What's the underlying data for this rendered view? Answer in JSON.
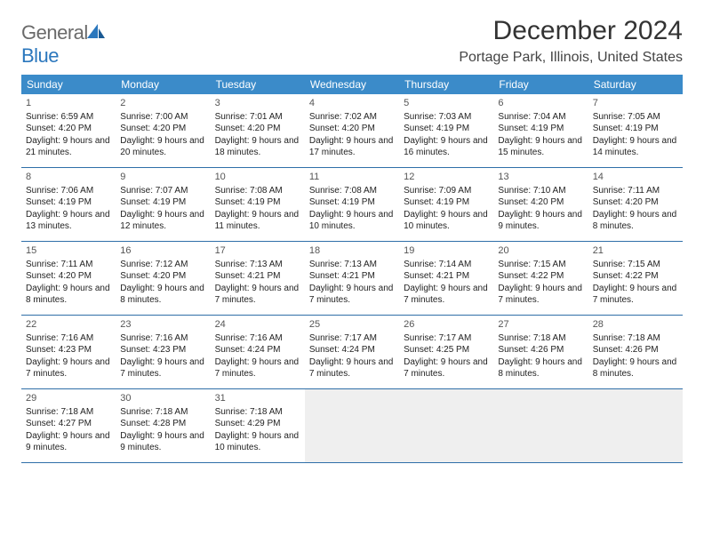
{
  "logo": {
    "text1": "General",
    "text2": "Blue"
  },
  "header": {
    "month_title": "December 2024",
    "location": "Portage Park, Illinois, United States"
  },
  "colors": {
    "header_bg": "#3b8bc9",
    "header_text": "#ffffff",
    "row_border": "#2f6fa8",
    "empty_bg": "#efefef",
    "logo_gray": "#6a6a6a",
    "logo_blue": "#2b77bd"
  },
  "day_names": [
    "Sunday",
    "Monday",
    "Tuesday",
    "Wednesday",
    "Thursday",
    "Friday",
    "Saturday"
  ],
  "weeks": [
    [
      {
        "day": "1",
        "sunrise": "Sunrise: 6:59 AM",
        "sunset": "Sunset: 4:20 PM",
        "daylight": "Daylight: 9 hours and 21 minutes."
      },
      {
        "day": "2",
        "sunrise": "Sunrise: 7:00 AM",
        "sunset": "Sunset: 4:20 PM",
        "daylight": "Daylight: 9 hours and 20 minutes."
      },
      {
        "day": "3",
        "sunrise": "Sunrise: 7:01 AM",
        "sunset": "Sunset: 4:20 PM",
        "daylight": "Daylight: 9 hours and 18 minutes."
      },
      {
        "day": "4",
        "sunrise": "Sunrise: 7:02 AM",
        "sunset": "Sunset: 4:20 PM",
        "daylight": "Daylight: 9 hours and 17 minutes."
      },
      {
        "day": "5",
        "sunrise": "Sunrise: 7:03 AM",
        "sunset": "Sunset: 4:19 PM",
        "daylight": "Daylight: 9 hours and 16 minutes."
      },
      {
        "day": "6",
        "sunrise": "Sunrise: 7:04 AM",
        "sunset": "Sunset: 4:19 PM",
        "daylight": "Daylight: 9 hours and 15 minutes."
      },
      {
        "day": "7",
        "sunrise": "Sunrise: 7:05 AM",
        "sunset": "Sunset: 4:19 PM",
        "daylight": "Daylight: 9 hours and 14 minutes."
      }
    ],
    [
      {
        "day": "8",
        "sunrise": "Sunrise: 7:06 AM",
        "sunset": "Sunset: 4:19 PM",
        "daylight": "Daylight: 9 hours and 13 minutes."
      },
      {
        "day": "9",
        "sunrise": "Sunrise: 7:07 AM",
        "sunset": "Sunset: 4:19 PM",
        "daylight": "Daylight: 9 hours and 12 minutes."
      },
      {
        "day": "10",
        "sunrise": "Sunrise: 7:08 AM",
        "sunset": "Sunset: 4:19 PM",
        "daylight": "Daylight: 9 hours and 11 minutes."
      },
      {
        "day": "11",
        "sunrise": "Sunrise: 7:08 AM",
        "sunset": "Sunset: 4:19 PM",
        "daylight": "Daylight: 9 hours and 10 minutes."
      },
      {
        "day": "12",
        "sunrise": "Sunrise: 7:09 AM",
        "sunset": "Sunset: 4:19 PM",
        "daylight": "Daylight: 9 hours and 10 minutes."
      },
      {
        "day": "13",
        "sunrise": "Sunrise: 7:10 AM",
        "sunset": "Sunset: 4:20 PM",
        "daylight": "Daylight: 9 hours and 9 minutes."
      },
      {
        "day": "14",
        "sunrise": "Sunrise: 7:11 AM",
        "sunset": "Sunset: 4:20 PM",
        "daylight": "Daylight: 9 hours and 8 minutes."
      }
    ],
    [
      {
        "day": "15",
        "sunrise": "Sunrise: 7:11 AM",
        "sunset": "Sunset: 4:20 PM",
        "daylight": "Daylight: 9 hours and 8 minutes."
      },
      {
        "day": "16",
        "sunrise": "Sunrise: 7:12 AM",
        "sunset": "Sunset: 4:20 PM",
        "daylight": "Daylight: 9 hours and 8 minutes."
      },
      {
        "day": "17",
        "sunrise": "Sunrise: 7:13 AM",
        "sunset": "Sunset: 4:21 PM",
        "daylight": "Daylight: 9 hours and 7 minutes."
      },
      {
        "day": "18",
        "sunrise": "Sunrise: 7:13 AM",
        "sunset": "Sunset: 4:21 PM",
        "daylight": "Daylight: 9 hours and 7 minutes."
      },
      {
        "day": "19",
        "sunrise": "Sunrise: 7:14 AM",
        "sunset": "Sunset: 4:21 PM",
        "daylight": "Daylight: 9 hours and 7 minutes."
      },
      {
        "day": "20",
        "sunrise": "Sunrise: 7:15 AM",
        "sunset": "Sunset: 4:22 PM",
        "daylight": "Daylight: 9 hours and 7 minutes."
      },
      {
        "day": "21",
        "sunrise": "Sunrise: 7:15 AM",
        "sunset": "Sunset: 4:22 PM",
        "daylight": "Daylight: 9 hours and 7 minutes."
      }
    ],
    [
      {
        "day": "22",
        "sunrise": "Sunrise: 7:16 AM",
        "sunset": "Sunset: 4:23 PM",
        "daylight": "Daylight: 9 hours and 7 minutes."
      },
      {
        "day": "23",
        "sunrise": "Sunrise: 7:16 AM",
        "sunset": "Sunset: 4:23 PM",
        "daylight": "Daylight: 9 hours and 7 minutes."
      },
      {
        "day": "24",
        "sunrise": "Sunrise: 7:16 AM",
        "sunset": "Sunset: 4:24 PM",
        "daylight": "Daylight: 9 hours and 7 minutes."
      },
      {
        "day": "25",
        "sunrise": "Sunrise: 7:17 AM",
        "sunset": "Sunset: 4:24 PM",
        "daylight": "Daylight: 9 hours and 7 minutes."
      },
      {
        "day": "26",
        "sunrise": "Sunrise: 7:17 AM",
        "sunset": "Sunset: 4:25 PM",
        "daylight": "Daylight: 9 hours and 7 minutes."
      },
      {
        "day": "27",
        "sunrise": "Sunrise: 7:18 AM",
        "sunset": "Sunset: 4:26 PM",
        "daylight": "Daylight: 9 hours and 8 minutes."
      },
      {
        "day": "28",
        "sunrise": "Sunrise: 7:18 AM",
        "sunset": "Sunset: 4:26 PM",
        "daylight": "Daylight: 9 hours and 8 minutes."
      }
    ],
    [
      {
        "day": "29",
        "sunrise": "Sunrise: 7:18 AM",
        "sunset": "Sunset: 4:27 PM",
        "daylight": "Daylight: 9 hours and 9 minutes."
      },
      {
        "day": "30",
        "sunrise": "Sunrise: 7:18 AM",
        "sunset": "Sunset: 4:28 PM",
        "daylight": "Daylight: 9 hours and 9 minutes."
      },
      {
        "day": "31",
        "sunrise": "Sunrise: 7:18 AM",
        "sunset": "Sunset: 4:29 PM",
        "daylight": "Daylight: 9 hours and 10 minutes."
      },
      null,
      null,
      null,
      null
    ]
  ]
}
